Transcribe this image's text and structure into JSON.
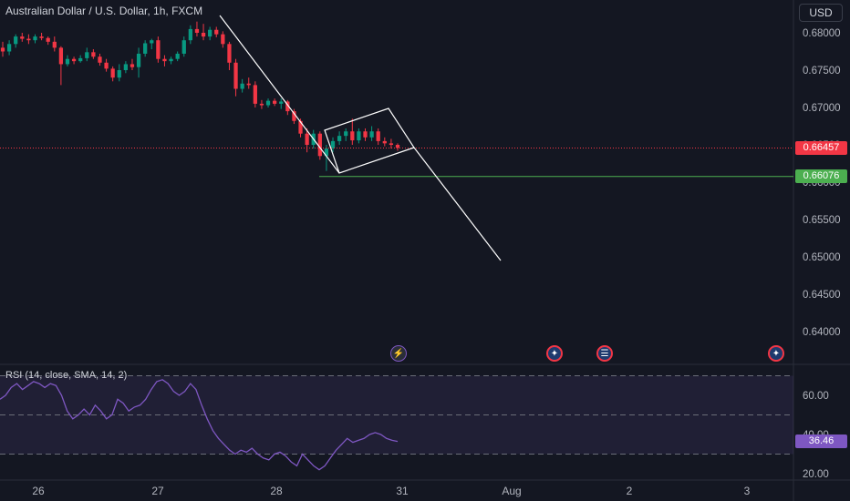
{
  "header": {
    "title": "Australian Dollar / U.S. Dollar, 1h, FXCM",
    "currency": "USD"
  },
  "price_axis": {
    "ticks": [
      "0.68000",
      "0.67500",
      "0.67000",
      "0.66500",
      "0.66000",
      "0.65500",
      "0.65000",
      "0.64500",
      "0.64000"
    ],
    "current_price": "0.66457",
    "current_price_color": "#f23645",
    "horizontal_line_price": "0.66076",
    "horizontal_line_color": "#4caf50"
  },
  "time_axis": {
    "ticks": [
      "26",
      "27",
      "28",
      "31",
      "Aug",
      "2",
      "3"
    ]
  },
  "rsi": {
    "label": "RSI (14, close, SMA, 14, 2)",
    "ticks": [
      "60.00",
      "40.00",
      "20.00"
    ],
    "current_value": "36.46",
    "line_color": "#7e57c2"
  },
  "events": [
    {
      "icon": "lightning-icon"
    },
    {
      "icon": "australia-flag-icon"
    },
    {
      "icon": "us-flag-icon"
    },
    {
      "icon": "australia-flag-icon"
    }
  ],
  "colors": {
    "background": "#141722",
    "up_candle": "#089981",
    "down_candle": "#f23645",
    "drawing": "#ffffff"
  },
  "chart_data": {
    "type": "candlestick",
    "symbol": "AUDUSD",
    "timeframe": "1h",
    "ylim": [
      0.6375,
      0.683
    ],
    "x_labels": [
      "26",
      "27",
      "28",
      "31",
      "Aug",
      "2",
      "3"
    ],
    "candles": [
      [
        0.678,
        0.6788,
        0.6768,
        0.6775
      ],
      [
        0.6775,
        0.679,
        0.677,
        0.6785
      ],
      [
        0.6785,
        0.6798,
        0.678,
        0.6795
      ],
      [
        0.6795,
        0.68,
        0.6788,
        0.6792
      ],
      [
        0.6792,
        0.6798,
        0.6785,
        0.679
      ],
      [
        0.679,
        0.6798,
        0.6786,
        0.6795
      ],
      [
        0.6795,
        0.68,
        0.679,
        0.6793
      ],
      [
        0.6793,
        0.6795,
        0.6784,
        0.6788
      ],
      [
        0.6788,
        0.6795,
        0.6775,
        0.678
      ],
      [
        0.678,
        0.6782,
        0.673,
        0.6758
      ],
      [
        0.6758,
        0.677,
        0.6755,
        0.6765
      ],
      [
        0.6765,
        0.6768,
        0.6758,
        0.6762
      ],
      [
        0.6762,
        0.677,
        0.676,
        0.6766
      ],
      [
        0.6766,
        0.678,
        0.6762,
        0.6774
      ],
      [
        0.6774,
        0.6778,
        0.6765,
        0.6768
      ],
      [
        0.6768,
        0.6772,
        0.6756,
        0.676
      ],
      [
        0.676,
        0.6765,
        0.6748,
        0.6752
      ],
      [
        0.6752,
        0.6755,
        0.6735,
        0.674
      ],
      [
        0.674,
        0.6758,
        0.6735,
        0.675
      ],
      [
        0.675,
        0.6762,
        0.6746,
        0.6758
      ],
      [
        0.6758,
        0.6765,
        0.675,
        0.6754
      ],
      [
        0.6754,
        0.678,
        0.674,
        0.6772
      ],
      [
        0.6772,
        0.679,
        0.6768,
        0.6786
      ],
      [
        0.6786,
        0.6792,
        0.6778,
        0.679
      ],
      [
        0.679,
        0.6795,
        0.676,
        0.6765
      ],
      [
        0.6765,
        0.677,
        0.6755,
        0.6762
      ],
      [
        0.6762,
        0.6768,
        0.6758,
        0.6765
      ],
      [
        0.6765,
        0.6775,
        0.6762,
        0.6772
      ],
      [
        0.6772,
        0.6795,
        0.6768,
        0.679
      ],
      [
        0.679,
        0.681,
        0.6785,
        0.6805
      ],
      [
        0.6805,
        0.6815,
        0.6795,
        0.68
      ],
      [
        0.68,
        0.6812,
        0.679,
        0.6795
      ],
      [
        0.6795,
        0.6808,
        0.679,
        0.6804
      ],
      [
        0.6804,
        0.6808,
        0.6794,
        0.6798
      ],
      [
        0.6798,
        0.6802,
        0.678,
        0.6785
      ],
      [
        0.6785,
        0.6788,
        0.675,
        0.676
      ],
      [
        0.676,
        0.6765,
        0.6715,
        0.6725
      ],
      [
        0.6725,
        0.6738,
        0.672,
        0.6732
      ],
      [
        0.6732,
        0.674,
        0.6725,
        0.673
      ],
      [
        0.673,
        0.6735,
        0.67,
        0.6705
      ],
      [
        0.6705,
        0.671,
        0.6698,
        0.6703
      ],
      [
        0.6703,
        0.6712,
        0.67,
        0.6709
      ],
      [
        0.6709,
        0.6712,
        0.6702,
        0.6705
      ],
      [
        0.6705,
        0.6712,
        0.6698,
        0.6708
      ],
      [
        0.6708,
        0.671,
        0.669,
        0.6695
      ],
      [
        0.6695,
        0.6698,
        0.6678,
        0.6682
      ],
      [
        0.6682,
        0.6685,
        0.666,
        0.6665
      ],
      [
        0.6665,
        0.6672,
        0.664,
        0.665
      ],
      [
        0.665,
        0.667,
        0.6645,
        0.6665
      ],
      [
        0.6665,
        0.6668,
        0.663,
        0.6635
      ],
      [
        0.6635,
        0.665,
        0.6615,
        0.6645
      ],
      [
        0.6645,
        0.666,
        0.664,
        0.6655
      ],
      [
        0.6655,
        0.6668,
        0.665,
        0.6662
      ],
      [
        0.6662,
        0.6672,
        0.6655,
        0.6668
      ],
      [
        0.6668,
        0.6685,
        0.665,
        0.6656
      ],
      [
        0.6656,
        0.6672,
        0.6652,
        0.6668
      ],
      [
        0.6668,
        0.6672,
        0.6655,
        0.666
      ],
      [
        0.666,
        0.6675,
        0.6655,
        0.6668
      ],
      [
        0.6668,
        0.6672,
        0.665,
        0.6655
      ],
      [
        0.6655,
        0.666,
        0.6648,
        0.6652
      ],
      [
        0.6652,
        0.6658,
        0.6645,
        0.665
      ],
      [
        0.665,
        0.6652,
        0.6642,
        0.6646
      ]
    ],
    "drawings": {
      "downtrend_line": {
        "from": [
          "27",
          0.6813
        ],
        "to": [
          "28",
          0.6613
        ]
      },
      "channel": {
        "upper_peak": 0.67,
        "lower_low": 0.6613
      },
      "projection_target": 0.6497
    },
    "horizontal_level": 0.66076,
    "last_price": 0.66457,
    "rsi": {
      "values": [
        58,
        60,
        64,
        66,
        63,
        65,
        67,
        66,
        64,
        66,
        65,
        60,
        52,
        48,
        50,
        53,
        50,
        55,
        52,
        48,
        50,
        58,
        56,
        52,
        54,
        55,
        58,
        63,
        67,
        68,
        66,
        62,
        60,
        62,
        66,
        63,
        55,
        48,
        42,
        38,
        35,
        32,
        30,
        32,
        31,
        33,
        30,
        28,
        27,
        30,
        31,
        29,
        26,
        24,
        30,
        27,
        24,
        22,
        24,
        28,
        32,
        35,
        38,
        36,
        37,
        38,
        40,
        41,
        40,
        38,
        37,
        36.46
      ],
      "ylim": [
        17,
        72
      ],
      "bands": [
        30,
        50,
        70
      ],
      "last_value": 36.46
    }
  }
}
